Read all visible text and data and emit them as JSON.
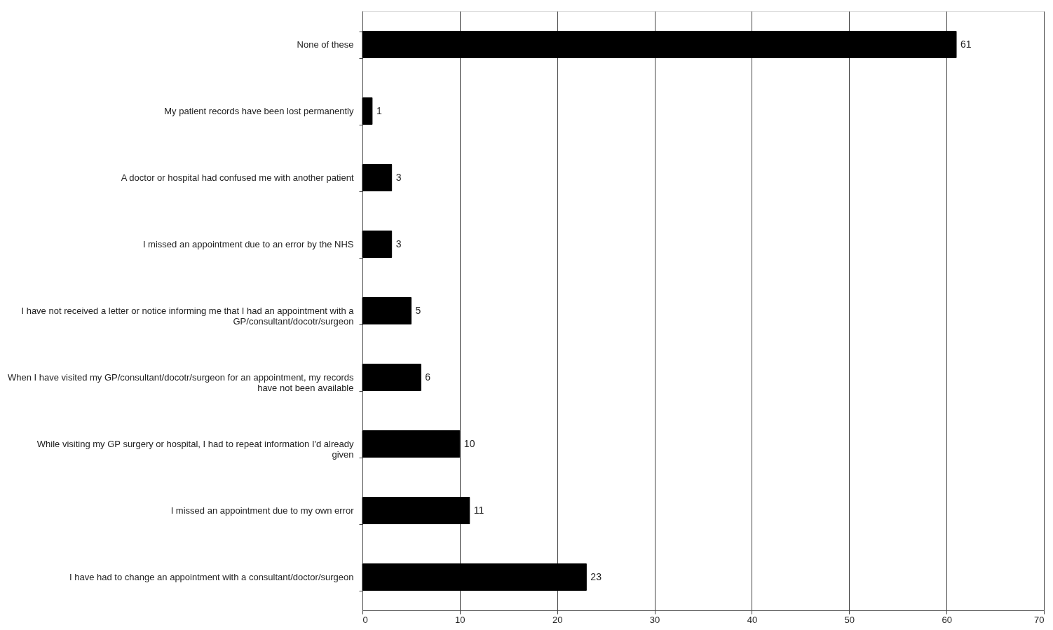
{
  "chart_data": {
    "type": "bar",
    "orientation": "horizontal",
    "categories": [
      "None of these",
      "My patient records have been lost permanently",
      "A doctor or hospital had confused me with another patient",
      "I missed an appointment due to an error by the NHS",
      "I have not received a letter or notice informing me that I had an appointment with a GP/consultant/docotr/surgeon",
      "When I have visited my GP/consultant/docotr/surgeon for an appointment, my records have not been available",
      "While visiting my GP surgery or hospital, I had to repeat information I'd already given",
      "I missed an appointment due to my own error",
      "I have had to change an appointment with a consultant/doctor/surgeon"
    ],
    "values": [
      61,
      1,
      3,
      3,
      5,
      6,
      10,
      11,
      23
    ],
    "color": "#000000",
    "xlim": [
      0,
      70
    ],
    "xticks": [
      0,
      10,
      20,
      30,
      40,
      50,
      60,
      70
    ],
    "grid": "x",
    "data_labels": true
  }
}
